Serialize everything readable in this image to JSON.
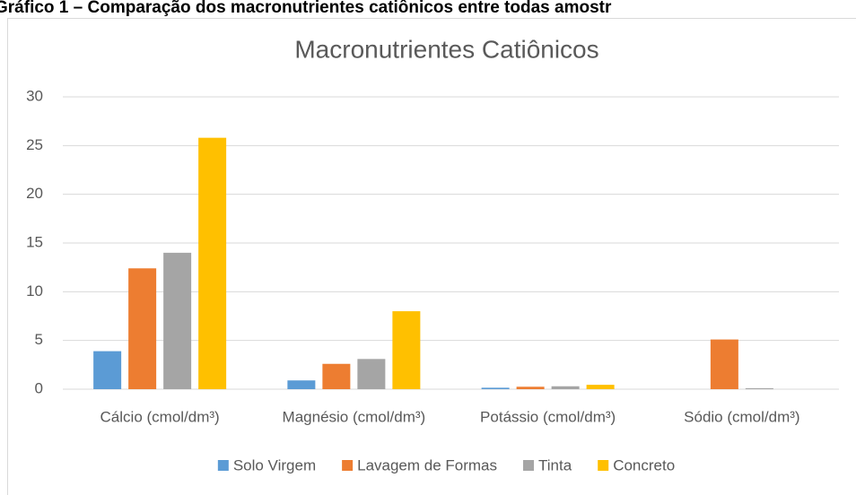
{
  "caption": "Gráfico 1 – Comparação dos macronutrientes catiônicos entre todas amostr",
  "chart_data": {
    "type": "bar",
    "title": "Macronutrientes Catiônicos",
    "categories": [
      "Cálcio (cmol/dm³)",
      "Magnésio (cmol/dm³)",
      "Potássio (cmol/dm³)",
      "Sódio (cmol/dm³)"
    ],
    "series": [
      {
        "name": "Solo Virgem",
        "color": "#5b9bd5",
        "values": [
          3.9,
          0.9,
          0.15,
          0
        ]
      },
      {
        "name": "Lavagem de Formas",
        "color": "#ed7d31",
        "values": [
          12.4,
          2.6,
          0.25,
          5.1
        ]
      },
      {
        "name": "Tinta",
        "color": "#a5a5a5",
        "values": [
          14,
          3.1,
          0.3,
          0.1
        ]
      },
      {
        "name": "Concreto",
        "color": "#ffc000",
        "values": [
          25.8,
          8,
          0.45,
          0
        ]
      }
    ],
    "ylim": [
      0,
      30
    ],
    "yticks": [
      0,
      5,
      10,
      15,
      20,
      25,
      30
    ],
    "grid": true,
    "legend": "bottom"
  }
}
